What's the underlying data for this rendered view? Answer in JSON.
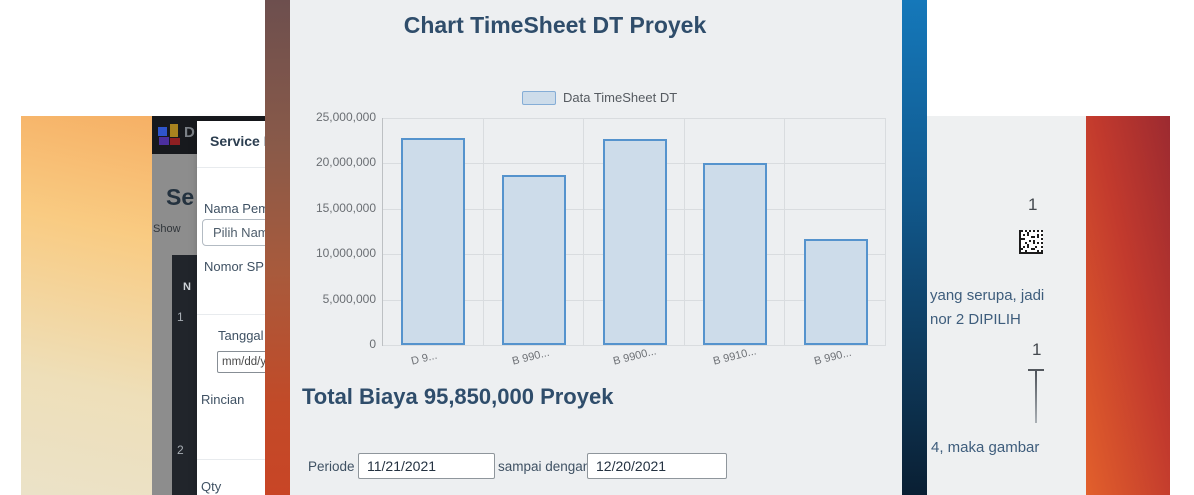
{
  "left_window": {
    "navbar": {
      "brand_letter": "D"
    },
    "heading_clipped": "Se",
    "show_label_clipped": "Show",
    "table": {
      "header_clipped": "N",
      "row_numbers": [
        "1",
        "2"
      ]
    },
    "modal": {
      "title_clipped": "Service K",
      "nama_label": "Nama Pem",
      "nama_select_value": "Pilih Nam",
      "nomor_label": "Nomor SP",
      "tanggal_label": "Tanggal",
      "tanggal_value": "mm/dd/y",
      "rincian_label": "Rincian",
      "qty_label": "Qty"
    }
  },
  "chart_card": {
    "total_text": "Total Biaya 95,850,000 Proyek",
    "periode_label": "Periode :",
    "periode_from": "11/21/2021",
    "sampai_label": "sampai dengan",
    "periode_to": "12/20/2021"
  },
  "chart_data": {
    "type": "bar",
    "title": "Chart TimeSheet DT Proyek",
    "legend_position": "top",
    "grid": true,
    "categories": [
      "D 9...",
      "B 990...",
      "B 9900...",
      "B 9910...",
      "B 990..."
    ],
    "series": [
      {
        "name": "Data TimeSheet DT",
        "values": [
          22800000,
          18750000,
          22650000,
          20000000,
          11650000
        ]
      }
    ],
    "ylim": [
      0,
      25000000
    ],
    "ytick_step": 5000000,
    "ytick_labels": [
      "0",
      "5,000,000",
      "10,000,000",
      "15,000,000",
      "20,000,000",
      "25,000,000"
    ],
    "bar_fill": "#cddcea",
    "bar_border": "#5593cd",
    "total_value": 95850000
  },
  "right_window": {
    "step_number_top": "1",
    "note_line_1": "yang serupa, jadi",
    "note_line_2": "nor 2 DIPILIH",
    "step_number_bottom": "1",
    "note_line_3": "4, maka gambar"
  },
  "colors": {
    "heading": "#2f4d6b",
    "card_bg": "#edeff1",
    "navbar_bg": "#17191d",
    "table_bg": "#21252b",
    "blue_strip_top": "#1578ba",
    "blue_strip_bottom": "#0a1f33",
    "red_gradient_dark": "#9c2a30",
    "red_gradient_orange": "#e2602c",
    "left_gradient_orange": "#f6b065",
    "left_gradient_cream": "#ebe2c8",
    "center_strip_top": "#6d4f4e",
    "center_strip_bottom": "#c84526"
  }
}
